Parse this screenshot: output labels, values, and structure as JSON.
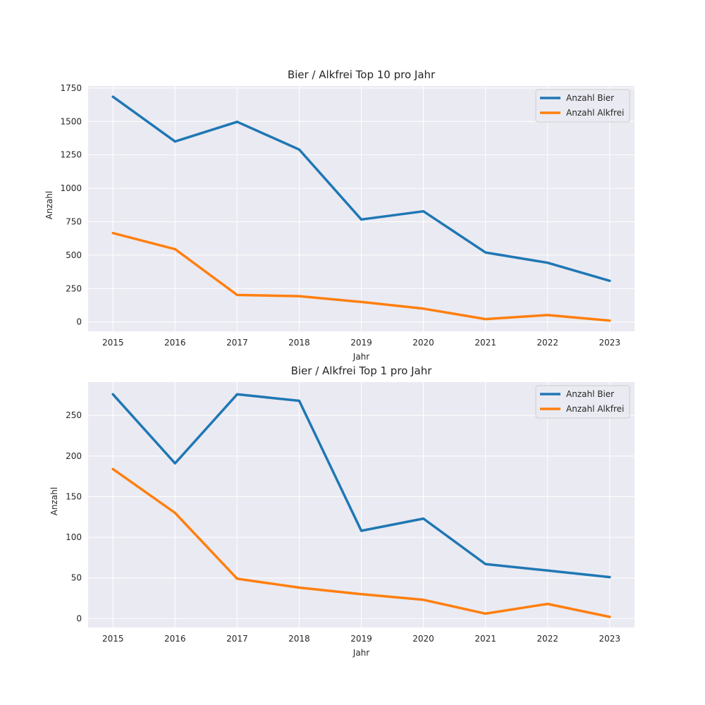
{
  "colors": {
    "background": "#eaeaf2",
    "grid": "#ffffff",
    "bier": "#1f77b4",
    "alkfrei": "#ff7f0e"
  },
  "chart_data": [
    {
      "type": "line",
      "title": "Bier / Alkfrei Top 10 pro Jahr",
      "xlabel": "Jahr",
      "ylabel": "Anzahl",
      "x": [
        2015,
        2016,
        2017,
        2018,
        2019,
        2020,
        2021,
        2022,
        2023
      ],
      "x_ticks": [
        "2015",
        "2016",
        "2017",
        "2018",
        "2019",
        "2020",
        "2021",
        "2022",
        "2023"
      ],
      "y_ticks": [
        "0",
        "250",
        "500",
        "750",
        "1000",
        "1250",
        "1500",
        "1750"
      ],
      "y_tick_values": [
        0,
        250,
        500,
        750,
        1000,
        1250,
        1500,
        1750
      ],
      "xlim": [
        2014.6,
        2023.4
      ],
      "ylim": [
        -70,
        1765
      ],
      "grid": true,
      "legend": "top-right",
      "series": [
        {
          "name": "Anzahl Bier",
          "color": "#1f77b4",
          "values": [
            1685,
            1350,
            1497,
            1290,
            767,
            828,
            520,
            443,
            308
          ]
        },
        {
          "name": "Anzahl Alkfrei",
          "color": "#ff7f0e",
          "values": [
            665,
            545,
            202,
            193,
            150,
            100,
            22,
            52,
            10
          ]
        }
      ]
    },
    {
      "type": "line",
      "title": "Bier / Alkfrei Top 1 pro Jahr",
      "xlabel": "Jahr",
      "ylabel": "Anzahl",
      "x": [
        2015,
        2016,
        2017,
        2018,
        2019,
        2020,
        2021,
        2022,
        2023
      ],
      "x_ticks": [
        "2015",
        "2016",
        "2017",
        "2018",
        "2019",
        "2020",
        "2021",
        "2022",
        "2023"
      ],
      "y_ticks": [
        "0",
        "50",
        "100",
        "150",
        "200",
        "250"
      ],
      "y_tick_values": [
        0,
        50,
        100,
        150,
        200,
        250
      ],
      "xlim": [
        2014.6,
        2023.4
      ],
      "ylim": [
        -11,
        291
      ],
      "grid": true,
      "legend": "top-right",
      "series": [
        {
          "name": "Anzahl Bier",
          "color": "#1f77b4",
          "values": [
            276,
            191,
            276,
            268,
            108,
            123,
            67,
            59,
            51
          ]
        },
        {
          "name": "Anzahl Alkfrei",
          "color": "#ff7f0e",
          "values": [
            184,
            130,
            49,
            38,
            30,
            23,
            6,
            18,
            2
          ]
        }
      ]
    }
  ]
}
